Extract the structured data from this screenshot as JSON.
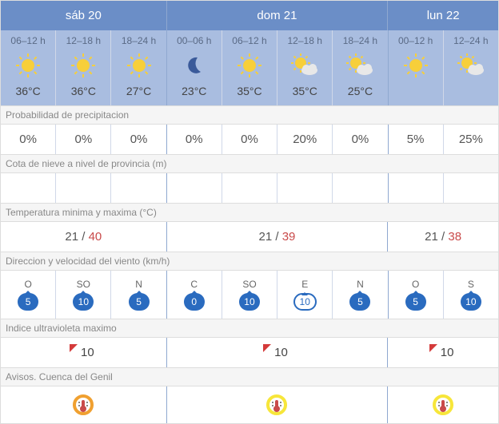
{
  "colors": {
    "header_bg": "#6b8ec7",
    "slot_bg": "#a9bde0",
    "accent": "#2a6bbf",
    "tmax": "#c94a4a",
    "warn_orange": "#f0a030",
    "warn_yellow": "#f7e63a"
  },
  "days": [
    {
      "label": "sáb 20",
      "cols": 3
    },
    {
      "label": "dom 21",
      "cols": 4
    },
    {
      "label": "lun 22",
      "cols": 2
    }
  ],
  "slots": [
    {
      "hours": "06–12 h",
      "icon": "sun",
      "temp": "36°C"
    },
    {
      "hours": "12–18 h",
      "icon": "sun",
      "temp": "36°C"
    },
    {
      "hours": "18–24 h",
      "icon": "sun",
      "temp": "27°C"
    },
    {
      "hours": "00–06 h",
      "icon": "moon",
      "temp": "23°C"
    },
    {
      "hours": "06–12 h",
      "icon": "sun",
      "temp": "35°C"
    },
    {
      "hours": "12–18 h",
      "icon": "suncloud",
      "temp": "35°C"
    },
    {
      "hours": "18–24 h",
      "icon": "suncloud",
      "temp": "25°C"
    },
    {
      "hours": "00–12 h",
      "icon": "sun",
      "temp": ""
    },
    {
      "hours": "12–24 h",
      "icon": "suncloud",
      "temp": ""
    }
  ],
  "sections": {
    "precip_label": "Probabilidad de precipitacion",
    "precip": [
      "0%",
      "0%",
      "0%",
      "0%",
      "0%",
      "20%",
      "0%",
      "5%",
      "25%"
    ],
    "snow_label": "Cota de nieve a nivel de provincia (m)",
    "snow": [
      "",
      "",
      "",
      "",
      "",
      "",
      "",
      "",
      ""
    ],
    "minmax_label": "Temperatura minima y maxima (°C)",
    "minmax": [
      {
        "min": "21",
        "max": "40"
      },
      {
        "min": "21",
        "max": "39"
      },
      {
        "min": "21",
        "max": "38"
      }
    ],
    "wind_label": "Direccion y velocidad del viento (km/h)",
    "wind": [
      {
        "dir": "O",
        "spd": "5",
        "filled": true
      },
      {
        "dir": "SO",
        "spd": "10",
        "filled": true
      },
      {
        "dir": "N",
        "spd": "5",
        "filled": true
      },
      {
        "dir": "C",
        "spd": "0",
        "filled": true
      },
      {
        "dir": "SO",
        "spd": "10",
        "filled": true
      },
      {
        "dir": "E",
        "spd": "10",
        "filled": false
      },
      {
        "dir": "N",
        "spd": "5",
        "filled": true
      },
      {
        "dir": "O",
        "spd": "5",
        "filled": true
      },
      {
        "dir": "S",
        "spd": "10",
        "filled": true
      }
    ],
    "uv_label": "Indice ultravioleta maximo",
    "uv": [
      "10",
      "10",
      "10"
    ],
    "avisos_label": "Avisos. Cuenca del Genil",
    "avisos": [
      "orange",
      "yellow",
      "yellow"
    ]
  }
}
